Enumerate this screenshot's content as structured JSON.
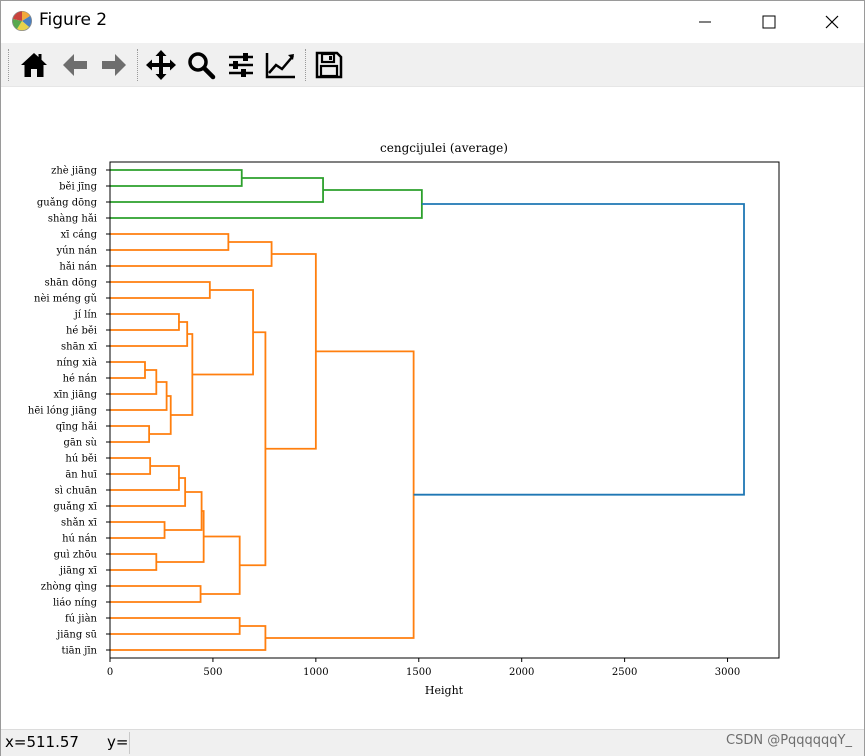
{
  "window": {
    "title": "Figure 2"
  },
  "toolbar": {
    "buttons": [
      "home-icon",
      "back-icon",
      "forward-icon",
      "pan-icon",
      "zoom-icon",
      "configure-subplots-icon",
      "edit-axis-icon",
      "save-icon"
    ]
  },
  "status": {
    "x_label": "x=511.57",
    "y_label": "y=",
    "watermark": "CSDN @PqqqqqqY_"
  },
  "chart_data": {
    "type": "dendrogram",
    "title": "cengcijulei (average)",
    "xlabel": "Height",
    "xlim": [
      0,
      3250
    ],
    "xticks": [
      0,
      500,
      1000,
      1500,
      2000,
      2500,
      3000
    ],
    "xtick_labels": [
      "0",
      "500",
      "1000",
      "1500",
      "2000",
      "2500",
      "3000"
    ],
    "orientation": "left",
    "leaves": [
      "zhè jiāng",
      "běi jīng",
      "guǎng dōng",
      "shàng hǎi",
      "xī cáng",
      "yún nán",
      "hǎi nán",
      "shān dōng",
      "nèi méng gǔ",
      "jí lín",
      "hé běi",
      "shān xī",
      "níng xià",
      "hé nán",
      "xīn jiāng",
      "hēi lóng jiāng",
      "qīng hǎi",
      "gān sù",
      "hú běi",
      "ān huī",
      "sì chuān",
      "guǎng xī",
      "shǎn xī",
      "hú nán",
      "guì zhōu",
      "jiāng xī",
      "zhòng qìng",
      "liáo níng",
      "fú jiàn",
      "jiāng sū",
      "tiān jīn"
    ],
    "link_colors": {
      "cluster_1": "#2ca02c",
      "cluster_2": "#ff7f0e",
      "root": "#1f77b4"
    },
    "merges": [
      {
        "a": 0,
        "b": 1,
        "height": 640,
        "color": "#2ca02c"
      },
      {
        "a": "m0",
        "b": 2,
        "height": 1035,
        "color": "#2ca02c"
      },
      {
        "a": "m1",
        "b": 3,
        "height": 1515,
        "color": "#2ca02c"
      },
      {
        "a": 4,
        "b": 5,
        "height": 575,
        "color": "#ff7f0e"
      },
      {
        "a": "m3",
        "b": 6,
        "height": 785,
        "color": "#ff7f0e"
      },
      {
        "a": 7,
        "b": 8,
        "height": 485,
        "color": "#ff7f0e"
      },
      {
        "a": 9,
        "b": 10,
        "height": 335,
        "color": "#ff7f0e"
      },
      {
        "a": "m6",
        "b": 11,
        "height": 375,
        "color": "#ff7f0e"
      },
      {
        "a": 12,
        "b": 13,
        "height": 170,
        "color": "#ff7f0e"
      },
      {
        "a": "m8",
        "b": 14,
        "height": 225,
        "color": "#ff7f0e"
      },
      {
        "a": "m9",
        "b": 15,
        "height": 275,
        "color": "#ff7f0e"
      },
      {
        "a": 16,
        "b": 17,
        "height": 190,
        "color": "#ff7f0e"
      },
      {
        "a": "m10",
        "b": "m11",
        "height": 295,
        "color": "#ff7f0e"
      },
      {
        "a": "m7",
        "b": "m12",
        "height": 400,
        "color": "#ff7f0e"
      },
      {
        "a": "m5",
        "b": "m13",
        "height": 695,
        "color": "#ff7f0e"
      },
      {
        "a": 18,
        "b": 19,
        "height": 195,
        "color": "#ff7f0e"
      },
      {
        "a": "m15",
        "b": 20,
        "height": 335,
        "color": "#ff7f0e"
      },
      {
        "a": "m16",
        "b": 21,
        "height": 365,
        "color": "#ff7f0e"
      },
      {
        "a": 22,
        "b": 23,
        "height": 265,
        "color": "#ff7f0e"
      },
      {
        "a": "m17",
        "b": "m18",
        "height": 445,
        "color": "#ff7f0e"
      },
      {
        "a": 24,
        "b": 25,
        "height": 225,
        "color": "#ff7f0e"
      },
      {
        "a": "m19",
        "b": "m20",
        "height": 455,
        "color": "#ff7f0e"
      },
      {
        "a": 26,
        "b": 27,
        "height": 440,
        "color": "#ff7f0e"
      },
      {
        "a": "m21",
        "b": "m22",
        "height": 630,
        "color": "#ff7f0e"
      },
      {
        "a": "m14",
        "b": "m23",
        "height": 755,
        "color": "#ff7f0e"
      },
      {
        "a": "m4",
        "b": "m24",
        "height": 1000,
        "color": "#ff7f0e"
      },
      {
        "a": 28,
        "b": 29,
        "height": 630,
        "color": "#ff7f0e"
      },
      {
        "a": "m26",
        "b": 30,
        "height": 755,
        "color": "#ff7f0e"
      },
      {
        "a": "m25",
        "b": "m27",
        "height": 1475,
        "color": "#ff7f0e"
      },
      {
        "a": "m2",
        "b": "m28",
        "height": 3080,
        "color": "#1f77b4"
      }
    ]
  }
}
